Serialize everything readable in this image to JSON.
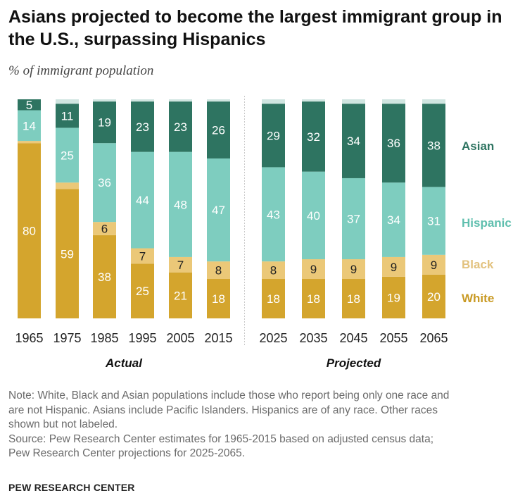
{
  "title": "Asians projected to become the largest immigrant group in the U.S., surpassing Hispanics",
  "subtitle": "% of immigrant population",
  "note_lines": [
    "Note: White, Black and Asian populations include those who report being only one race and",
    "are not Hispanic. Asians include Pacific Islanders. Hispanics are of any race. Other races",
    "shown but not labeled.",
    "Source: Pew Research Center estimates for 1965-2015 based on adjusted census data;",
    "Pew Research Center projections for 2025-2065."
  ],
  "brand": "PEW RESEARCH CENTER",
  "colors": {
    "White": "#d4a52d",
    "Black": "#ebc878",
    "Hispanic": "#7ecdbf",
    "Asian": "#2e7461",
    "Other": "#cfe5e0",
    "legend_White": "#c99a24",
    "legend_Black": "#e2c27e",
    "legend_Hispanic": "#5fbfae",
    "legend_Asian": "#2e7461"
  },
  "chart_data": {
    "type": "bar",
    "stacked": true,
    "groups": [
      {
        "label": "Actual",
        "categories": [
          "1965",
          "1975",
          "1985",
          "1995",
          "2005",
          "2015"
        ]
      },
      {
        "label": "Projected",
        "categories": [
          "2025",
          "2035",
          "2045",
          "2055",
          "2065"
        ]
      }
    ],
    "categories": [
      "1965",
      "1975",
      "1985",
      "1995",
      "2005",
      "2015",
      "2025",
      "2035",
      "2045",
      "2055",
      "2065"
    ],
    "series": [
      {
        "name": "White",
        "values": [
          80,
          59,
          38,
          25,
          21,
          18,
          18,
          18,
          18,
          19,
          20
        ],
        "labels_shown": [
          true,
          true,
          true,
          true,
          true,
          true,
          true,
          true,
          true,
          true,
          true
        ]
      },
      {
        "name": "Black",
        "values": [
          1,
          3,
          6,
          7,
          7,
          8,
          8,
          9,
          9,
          9,
          9
        ],
        "labels_shown": [
          false,
          false,
          true,
          true,
          true,
          true,
          true,
          true,
          true,
          true,
          true
        ]
      },
      {
        "name": "Hispanic",
        "values": [
          14,
          25,
          36,
          44,
          48,
          47,
          43,
          40,
          37,
          34,
          31
        ],
        "labels_shown": [
          true,
          true,
          true,
          true,
          true,
          true,
          true,
          true,
          true,
          true,
          true
        ]
      },
      {
        "name": "Asian",
        "values": [
          5,
          11,
          19,
          23,
          23,
          26,
          29,
          32,
          34,
          36,
          38
        ],
        "labels_shown": [
          true,
          true,
          true,
          true,
          true,
          true,
          true,
          true,
          true,
          true,
          true
        ]
      },
      {
        "name": "Other",
        "values": [
          0,
          2,
          1,
          1,
          1,
          1,
          2,
          1,
          2,
          2,
          2
        ],
        "labels_shown": [
          false,
          false,
          false,
          false,
          false,
          false,
          false,
          false,
          false,
          false,
          false
        ]
      }
    ],
    "legend": [
      "Asian",
      "Hispanic",
      "Black",
      "White"
    ],
    "legend_position": "right",
    "ylim": [
      0,
      100
    ],
    "grid": false
  }
}
